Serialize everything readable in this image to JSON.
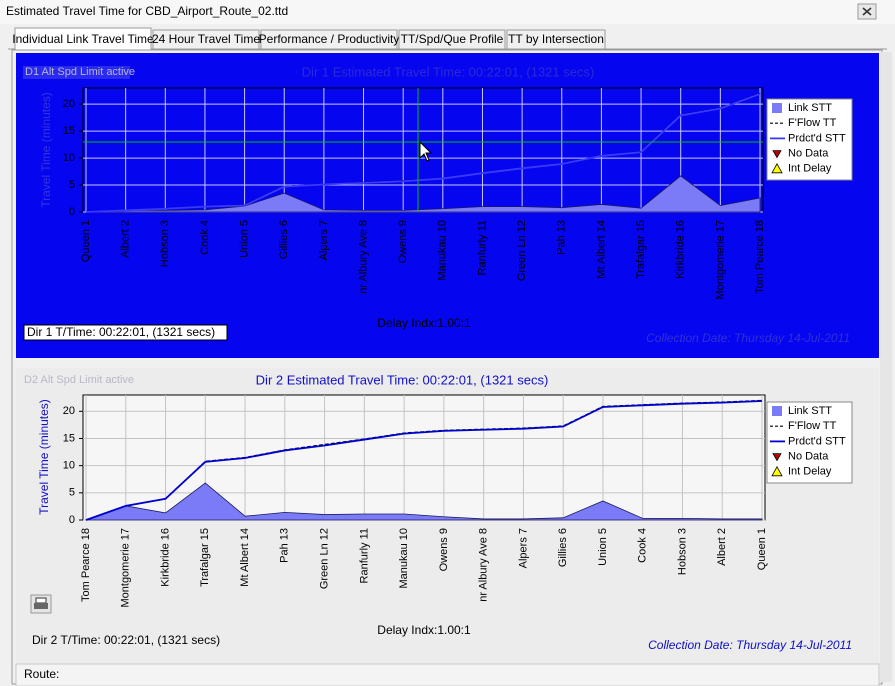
{
  "window": {
    "title": "Estimated Travel Time for CBD_Airport_Route_02.ttd"
  },
  "tabs": [
    "Individual Link Travel Time",
    "24 Hour Travel Time",
    "Performance / Productivity",
    "TT/Spd/Que Profile",
    "TT by Intersection"
  ],
  "chart_data": [
    {
      "type": "line",
      "title": "Dir 1 Estimated Travel Time: 00:22:01, (1321 secs)",
      "ylabel": "Travel Time (minutes)",
      "annotations": {
        "speed_limit": "D1 Alt Spd Limit active",
        "total_time": "Dir 1 T/Time: 00:22:01, (1321 secs)",
        "delay_index": "Delay Indx:1.00:1",
        "collection_date": "Collection Date:  Thursday  14-Jul-2011"
      },
      "categories": [
        "Queen 1",
        "Albert 2",
        "Hobson 3",
        "Cook 4",
        "Union 5",
        "Gillies 6",
        "Alpers 7",
        "nr Albury Ave 8",
        "Owens 9",
        "Manukau 10",
        "Ranfurly 11",
        "Green Ln 12",
        "Pah 13",
        "Mt Albert 14",
        "Trafalgar 15",
        "Kirkbride 16",
        "Montgomerie 17",
        "Tom Pearce 18"
      ],
      "series": [
        {
          "name": "Link STT",
          "kind": "area",
          "color": "#7b7bf7",
          "values": [
            0,
            0.3,
            0.3,
            0.4,
            1.1,
            3.5,
            0.4,
            0.3,
            0.3,
            0.6,
            1.0,
            1.0,
            0.8,
            1.4,
            0.7,
            6.7,
            1.2,
            2.6
          ]
        },
        {
          "name": "F'Flow TT",
          "kind": "line",
          "dash": true,
          "color": "#000000",
          "values": [
            0,
            0.3,
            0.6,
            1.0,
            1.3,
            4.8,
            5.1,
            5.5,
            5.8,
            6.2,
            7.2,
            8.1,
            8.9,
            10.4,
            11.2,
            18.0,
            19.3,
            22.0
          ]
        },
        {
          "name": "Prdct'd STT",
          "kind": "line",
          "color": "#3a3aff",
          "values": [
            0,
            0.3,
            0.6,
            1.0,
            1.2,
            4.7,
            5.1,
            5.4,
            5.7,
            6.2,
            7.2,
            8.1,
            8.9,
            10.4,
            11.1,
            17.9,
            19.2,
            21.9
          ]
        },
        {
          "name": "No Data",
          "kind": "marker",
          "marker": "triangle-down",
          "color": "#c00000",
          "values": [
            null,
            null,
            null,
            null,
            null,
            null,
            null,
            null,
            null,
            null,
            null,
            null,
            null,
            null,
            null,
            null,
            null,
            null
          ]
        },
        {
          "name": "Int Delay",
          "kind": "marker",
          "marker": "triangle",
          "color": "#ffff00",
          "values": [
            null,
            null,
            null,
            null,
            null,
            null,
            null,
            null,
            null,
            null,
            null,
            null,
            null,
            null,
            null,
            null,
            null,
            null
          ]
        }
      ],
      "ylim": [
        0,
        23
      ],
      "yticks": [
        0,
        5,
        10,
        15,
        20
      ],
      "grid": true,
      "legend": "right"
    },
    {
      "type": "line",
      "title": "Dir 2 Estimated Travel Time: 00:22:01, (1321 secs)",
      "ylabel": "Travel Time (minutes)",
      "annotations": {
        "speed_limit": "D2 Alt Spd Limit active",
        "total_time": "Dir 2 T/Time: 00:22:01, (1321 secs)",
        "delay_index": "Delay Indx:1.00:1",
        "collection_date": "Collection Date:  Thursday  14-Jul-2011"
      },
      "categories": [
        "Tom Pearce 18",
        "Montgomerie 17",
        "Kirkbride 16",
        "Trafalgar 15",
        "Mt Albert 14",
        "Pah 13",
        "Green Ln 12",
        "Ranfurly 11",
        "Manukau 10",
        "Owens 9",
        "nr Albury Ave 8",
        "Alpers 7",
        "Gillies 6",
        "Union 5",
        "Cook 4",
        "Hobson 3",
        "Albert 2",
        "Queen 1"
      ],
      "series": [
        {
          "name": "Link STT",
          "kind": "area",
          "color": "#7b7bf7",
          "values": [
            0,
            2.6,
            1.3,
            6.8,
            0.7,
            1.4,
            1.0,
            1.1,
            1.1,
            0.6,
            0.2,
            0.2,
            0.4,
            3.5,
            0.3,
            0.3,
            0.2,
            0.2
          ]
        },
        {
          "name": "F'Flow TT",
          "kind": "line",
          "dash": true,
          "color": "#000000",
          "values": [
            0,
            2.6,
            3.9,
            10.8,
            11.5,
            12.9,
            13.9,
            14.9,
            16.0,
            16.5,
            16.7,
            16.9,
            17.3,
            20.9,
            21.2,
            21.5,
            21.7,
            22.0
          ]
        },
        {
          "name": "Prdct'd STT",
          "kind": "line",
          "color": "#0000cc",
          "values": [
            0,
            2.6,
            3.9,
            10.7,
            11.4,
            12.8,
            13.7,
            14.8,
            15.9,
            16.4,
            16.6,
            16.8,
            17.2,
            20.8,
            21.1,
            21.4,
            21.6,
            21.9
          ]
        },
        {
          "name": "No Data",
          "kind": "marker",
          "marker": "triangle-down",
          "color": "#c00000",
          "values": [
            null,
            null,
            null,
            null,
            null,
            null,
            null,
            null,
            null,
            null,
            null,
            null,
            null,
            null,
            null,
            null,
            null,
            null
          ]
        },
        {
          "name": "Int Delay",
          "kind": "marker",
          "marker": "triangle",
          "color": "#ffff00",
          "values": [
            null,
            null,
            null,
            null,
            null,
            null,
            null,
            null,
            null,
            null,
            null,
            null,
            null,
            null,
            null,
            null,
            null,
            null
          ]
        }
      ],
      "ylim": [
        0,
        23
      ],
      "yticks": [
        0,
        5,
        10,
        15,
        20
      ],
      "grid": true,
      "legend": "right"
    }
  ],
  "status": {
    "route_label": "Route:"
  }
}
